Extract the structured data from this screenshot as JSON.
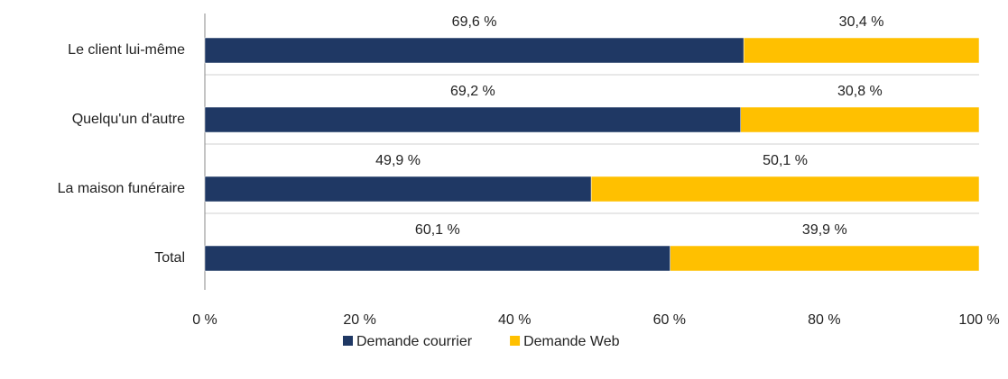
{
  "chart_data": {
    "type": "stacked-bar-horizontal",
    "categories": [
      "Le client lui-même",
      "Quelqu'un d'autre",
      "La maison funéraire",
      "Total"
    ],
    "series": [
      {
        "name": "Demande courrier",
        "color": "#1f3864",
        "values": [
          69.6,
          69.2,
          49.9,
          60.1
        ],
        "value_labels": [
          "69,6 %",
          "69,2 %",
          "49,9 %",
          "60,1 %"
        ]
      },
      {
        "name": "Demande Web",
        "color": "#ffc000",
        "values": [
          30.4,
          30.8,
          50.1,
          39.9
        ],
        "value_labels": [
          "30,4 %",
          "30,8 %",
          "50,1 %",
          "39,9 %"
        ]
      }
    ],
    "xlim": [
      0,
      100
    ],
    "xticks": [
      {
        "value": 0,
        "label": "0 %"
      },
      {
        "value": 20,
        "label": "20 %"
      },
      {
        "value": 40,
        "label": "40 %"
      },
      {
        "value": 60,
        "label": "60 %"
      },
      {
        "value": 80,
        "label": "80 %"
      },
      {
        "value": 100,
        "label": "100 %"
      }
    ],
    "legend": "bottom"
  }
}
